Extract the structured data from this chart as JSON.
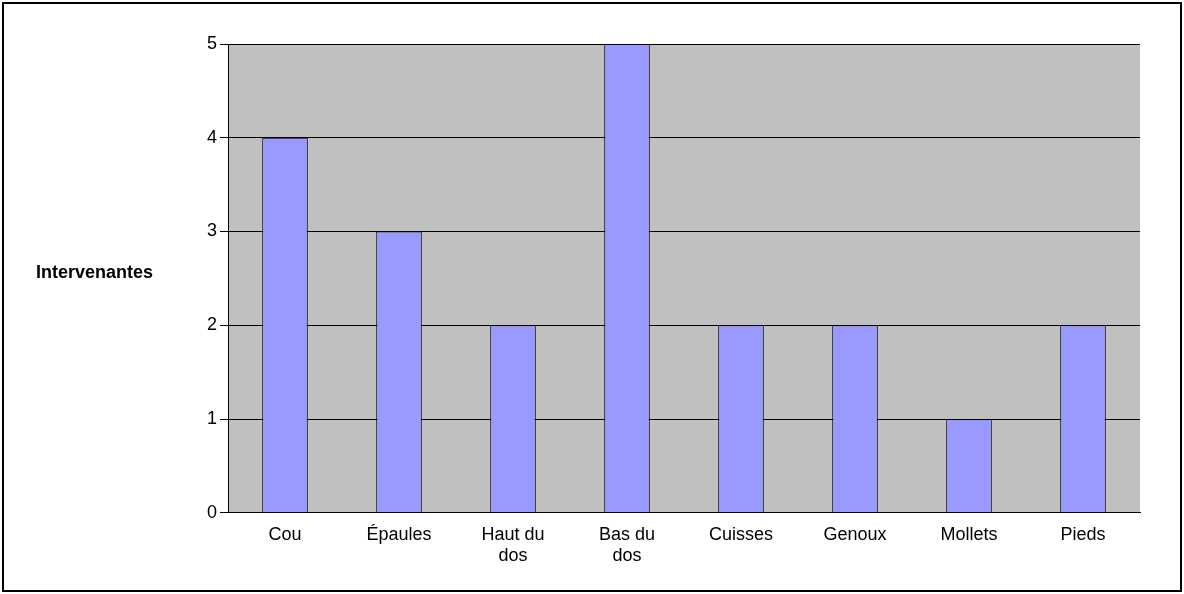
{
  "chart_data": {
    "type": "bar",
    "ylabel": "Intervenantes",
    "categories": [
      "Cou",
      "Épaules",
      "Haut du dos",
      "Bas du dos",
      "Cuisses",
      "Genoux",
      "Mollets",
      "Pieds"
    ],
    "values": [
      4,
      3,
      2,
      5,
      2,
      2,
      1,
      2
    ],
    "color": "#9999ff",
    "ylim": [
      0,
      5
    ],
    "yticks": [
      0,
      1,
      2,
      3,
      4,
      5
    ],
    "grid": "y"
  }
}
